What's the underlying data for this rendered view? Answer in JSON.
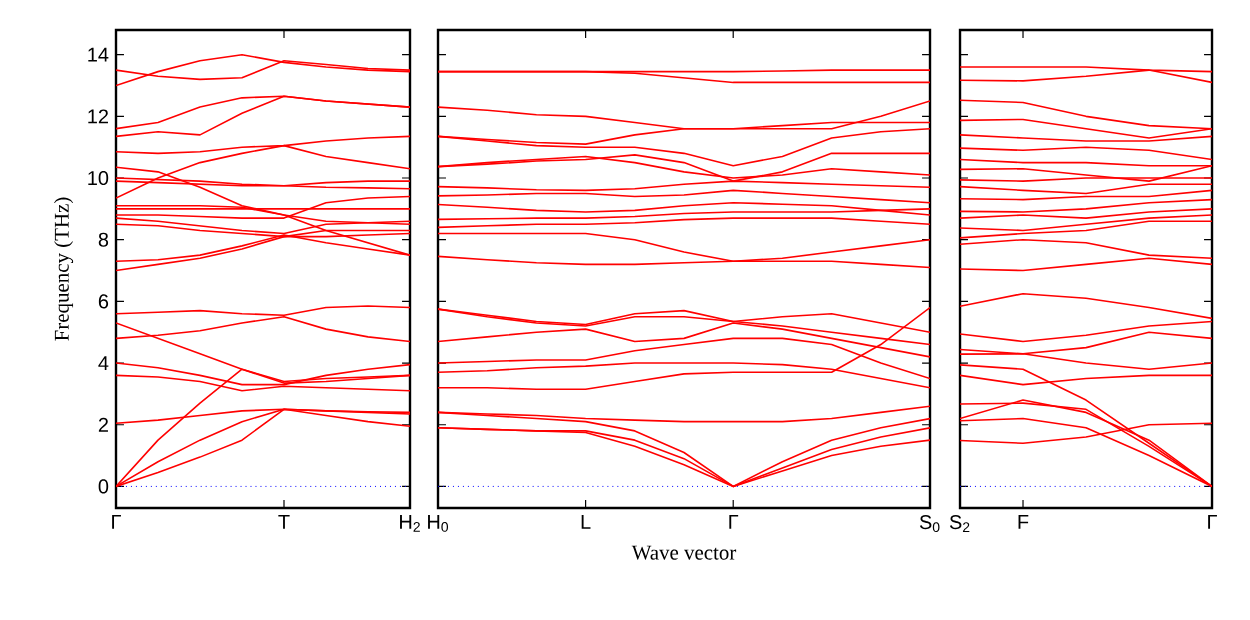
{
  "chart_data": [
    {
      "type": "line",
      "ylabel": "Frequency (THz)",
      "ylim": [
        -0.7,
        14.8
      ],
      "yticks": [
        0,
        2,
        4,
        6,
        8,
        10,
        12,
        14
      ],
      "categories": [
        "Γ",
        null,
        null,
        null,
        "T",
        null,
        null,
        "H$_{2}$"
      ],
      "ref_lines": [
        {
          "axis": "y",
          "value": 0,
          "color": "#0000ff",
          "line_style": "dotted"
        }
      ],
      "series": [
        {
          "color": "#ff0000",
          "values": [
            0,
            0.45,
            0.95,
            1.5,
            2.5,
            2.3,
            2.1,
            1.95
          ]
        },
        {
          "color": "#ff0000",
          "values": [
            0,
            0.8,
            1.5,
            2.1,
            2.5,
            2.45,
            2.4,
            2.35
          ]
        },
        {
          "color": "#ff0000",
          "values": [
            0,
            1.5,
            2.7,
            3.8,
            3.4,
            3.5,
            3.55,
            3.6
          ]
        },
        {
          "color": "#ff0000",
          "values": [
            2.05,
            2.15,
            2.3,
            2.45,
            2.5,
            2.45,
            2.42,
            2.4
          ]
        },
        {
          "color": "#ff0000",
          "values": [
            3.6,
            3.55,
            3.4,
            3.1,
            3.25,
            3.2,
            3.15,
            3.1
          ]
        },
        {
          "color": "#ff0000",
          "values": [
            4.0,
            3.85,
            3.6,
            3.3,
            3.3,
            3.6,
            3.8,
            3.95
          ]
        },
        {
          "color": "#ff0000",
          "values": [
            5.3,
            4.8,
            4.3,
            3.8,
            3.35,
            3.4,
            3.5,
            3.6
          ]
        },
        {
          "color": "#ff0000",
          "values": [
            4.8,
            4.9,
            5.05,
            5.3,
            5.5,
            5.1,
            4.85,
            4.7
          ]
        },
        {
          "color": "#ff0000",
          "values": [
            5.6,
            5.65,
            5.7,
            5.6,
            5.55,
            5.8,
            5.85,
            5.8
          ]
        },
        {
          "color": "#ff0000",
          "values": [
            7.0,
            7.2,
            7.4,
            7.7,
            8.1,
            8.1,
            8.15,
            8.2
          ]
        },
        {
          "color": "#ff0000",
          "values": [
            7.3,
            7.35,
            7.5,
            7.8,
            8.15,
            7.9,
            7.7,
            7.5
          ]
        },
        {
          "color": "#ff0000",
          "values": [
            8.5,
            8.45,
            8.3,
            8.2,
            8.1,
            8.3,
            8.3,
            8.3
          ]
        },
        {
          "color": "#ff0000",
          "values": [
            8.7,
            8.6,
            8.45,
            8.3,
            8.2,
            8.5,
            8.55,
            8.6
          ]
        },
        {
          "color": "#ff0000",
          "values": [
            8.8,
            8.8,
            8.75,
            8.7,
            8.7,
            9.2,
            9.35,
            9.4
          ]
        },
        {
          "color": "#ff0000",
          "values": [
            9.0,
            9.0,
            9.0,
            9.0,
            9.0,
            9.0,
            9.0,
            9.0
          ]
        },
        {
          "color": "#ff0000",
          "values": [
            9.1,
            9.1,
            9.1,
            9.05,
            8.8,
            8.6,
            8.55,
            8.5
          ]
        },
        {
          "color": "#ff0000",
          "values": [
            9.35,
            10.0,
            10.5,
            10.8,
            11.05,
            10.7,
            10.5,
            10.3
          ]
        },
        {
          "color": "#ff0000",
          "values": [
            9.9,
            9.85,
            9.8,
            9.75,
            9.75,
            9.7,
            9.68,
            9.65
          ]
        },
        {
          "color": "#ff0000",
          "values": [
            10.0,
            9.95,
            9.9,
            9.8,
            9.75,
            9.85,
            9.9,
            9.9
          ]
        },
        {
          "color": "#ff0000",
          "values": [
            10.35,
            10.2,
            9.7,
            9.1,
            8.8,
            8.3,
            7.9,
            7.5
          ]
        },
        {
          "color": "#ff0000",
          "values": [
            10.85,
            10.8,
            10.85,
            11.0,
            11.05,
            11.2,
            11.3,
            11.35
          ]
        },
        {
          "color": "#ff0000",
          "values": [
            11.35,
            11.5,
            11.4,
            12.1,
            12.65,
            12.5,
            12.4,
            12.3
          ]
        },
        {
          "color": "#ff0000",
          "values": [
            11.6,
            11.8,
            12.3,
            12.6,
            12.65,
            12.5,
            12.4,
            12.3
          ]
        },
        {
          "color": "#ff0000",
          "values": [
            13.0,
            13.45,
            13.8,
            14.0,
            13.75,
            13.6,
            13.5,
            13.45
          ]
        },
        {
          "color": "#ff0000",
          "values": [
            13.5,
            13.3,
            13.2,
            13.25,
            13.8,
            13.68,
            13.55,
            13.5
          ]
        }
      ]
    },
    {
      "type": "line",
      "xlabel": "Wave vector",
      "tick_labels": "x",
      "ylim": [
        -0.7,
        14.8
      ],
      "yticks": [
        0,
        2,
        4,
        6,
        8,
        10,
        12,
        14
      ],
      "categories": [
        "H$_{0}$",
        null,
        null,
        "L",
        null,
        null,
        "Γ",
        null,
        null,
        null,
        "S$_{0}$"
      ],
      "ref_lines": [
        {
          "axis": "y",
          "value": 0,
          "color": "#0000ff",
          "line_style": "dotted"
        }
      ],
      "series": [
        {
          "color": "#ff0000",
          "values": [
            1.9,
            1.85,
            1.8,
            1.75,
            1.3,
            0.7,
            0,
            0.5,
            1.0,
            1.3,
            1.5
          ]
        },
        {
          "color": "#ff0000",
          "values": [
            1.9,
            1.85,
            1.8,
            1.8,
            1.5,
            0.9,
            0,
            0.6,
            1.2,
            1.6,
            1.9
          ]
        },
        {
          "color": "#ff0000",
          "values": [
            2.4,
            2.3,
            2.2,
            2.1,
            1.8,
            1.1,
            0,
            0.8,
            1.5,
            1.9,
            2.2
          ]
        },
        {
          "color": "#ff0000",
          "values": [
            2.4,
            2.35,
            2.3,
            2.2,
            2.15,
            2.1,
            2.1,
            2.1,
            2.2,
            2.4,
            2.6
          ]
        },
        {
          "color": "#ff0000",
          "values": [
            3.2,
            3.2,
            3.15,
            3.15,
            3.4,
            3.65,
            3.7,
            3.7,
            3.7,
            4.6,
            5.8
          ]
        },
        {
          "color": "#ff0000",
          "values": [
            3.7,
            3.75,
            3.85,
            3.9,
            4.0,
            4.0,
            4.0,
            3.95,
            3.8,
            3.5,
            3.2
          ]
        },
        {
          "color": "#ff0000",
          "values": [
            4.0,
            4.05,
            4.1,
            4.1,
            4.4,
            4.6,
            4.8,
            4.8,
            4.6,
            4.0,
            3.5
          ]
        },
        {
          "color": "#ff0000",
          "values": [
            4.7,
            4.85,
            5.0,
            5.1,
            4.7,
            4.8,
            5.3,
            5.1,
            4.8,
            4.5,
            4.2
          ]
        },
        {
          "color": "#ff0000",
          "values": [
            5.75,
            5.5,
            5.3,
            5.2,
            5.5,
            5.5,
            5.35,
            5.2,
            5.0,
            4.8,
            4.6
          ]
        },
        {
          "color": "#ff0000",
          "values": [
            5.75,
            5.55,
            5.35,
            5.25,
            5.6,
            5.7,
            5.35,
            5.5,
            5.6,
            5.3,
            5.0
          ]
        },
        {
          "color": "#ff0000",
          "values": [
            7.46,
            7.35,
            7.25,
            7.2,
            7.2,
            7.25,
            7.3,
            7.3,
            7.3,
            7.2,
            7.1
          ]
        },
        {
          "color": "#ff0000",
          "values": [
            8.2,
            8.2,
            8.2,
            8.2,
            8.0,
            7.6,
            7.3,
            7.4,
            7.6,
            7.8,
            8.0
          ]
        },
        {
          "color": "#ff0000",
          "values": [
            8.4,
            8.45,
            8.5,
            8.5,
            8.55,
            8.65,
            8.7,
            8.7,
            8.7,
            8.6,
            8.5
          ]
        },
        {
          "color": "#ff0000",
          "values": [
            8.66,
            8.68,
            8.7,
            8.7,
            8.75,
            8.85,
            8.9,
            8.9,
            8.9,
            8.95,
            9.0
          ]
        },
        {
          "color": "#ff0000",
          "values": [
            9.14,
            9.05,
            8.95,
            8.9,
            8.95,
            9.1,
            9.2,
            9.15,
            9.1,
            8.95,
            8.8
          ]
        },
        {
          "color": "#ff0000",
          "values": [
            9.42,
            9.45,
            9.5,
            9.5,
            9.4,
            9.45,
            9.6,
            9.5,
            9.4,
            9.3,
            9.2
          ]
        },
        {
          "color": "#ff0000",
          "values": [
            9.72,
            9.68,
            9.62,
            9.6,
            9.65,
            9.8,
            9.9,
            9.85,
            9.8,
            9.75,
            9.7
          ]
        },
        {
          "color": "#ff0000",
          "values": [
            10.37,
            10.5,
            10.6,
            10.7,
            10.5,
            10.2,
            10.0,
            10.1,
            10.3,
            10.2,
            10.1
          ]
        },
        {
          "color": "#ff0000",
          "values": [
            10.37,
            10.45,
            10.55,
            10.6,
            10.75,
            10.5,
            9.9,
            10.2,
            10.8,
            10.8,
            10.8
          ]
        },
        {
          "color": "#ff0000",
          "values": [
            11.35,
            11.2,
            11.05,
            11.0,
            11.0,
            10.8,
            10.4,
            10.7,
            11.3,
            11.5,
            11.6
          ]
        },
        {
          "color": "#ff0000",
          "values": [
            11.35,
            11.25,
            11.15,
            11.1,
            11.4,
            11.6,
            11.6,
            11.7,
            11.8,
            11.8,
            11.8
          ]
        },
        {
          "color": "#ff0000",
          "values": [
            12.3,
            12.2,
            12.05,
            12.0,
            11.8,
            11.6,
            11.6,
            11.6,
            11.6,
            12.0,
            12.5
          ]
        },
        {
          "color": "#ff0000",
          "values": [
            13.45,
            13.45,
            13.45,
            13.45,
            13.4,
            13.25,
            13.1,
            13.1,
            13.1,
            13.1,
            13.1
          ]
        },
        {
          "color": "#ff0000",
          "values": [
            13.45,
            13.45,
            13.45,
            13.45,
            13.45,
            13.45,
            13.45,
            13.47,
            13.5,
            13.5,
            13.5
          ]
        }
      ]
    },
    {
      "type": "line",
      "tick_labels": "x",
      "ylim": [
        -0.7,
        14.8
      ],
      "yticks": [
        0,
        2,
        4,
        6,
        8,
        10,
        12,
        14
      ],
      "categories": [
        "S$_{2}$",
        "F",
        null,
        null,
        "Γ"
      ],
      "ref_lines": [
        {
          "axis": "y",
          "value": 0,
          "color": "#0000ff",
          "line_style": "dotted"
        }
      ],
      "series": [
        {
          "color": "#ff0000",
          "values": [
            1.49,
            1.4,
            1.6,
            2.0,
            2.05
          ]
        },
        {
          "color": "#ff0000",
          "values": [
            2.13,
            2.2,
            1.9,
            1.0,
            0
          ]
        },
        {
          "color": "#ff0000",
          "values": [
            2.2,
            2.8,
            2.4,
            1.5,
            0
          ]
        },
        {
          "color": "#ff0000",
          "values": [
            2.67,
            2.7,
            2.5,
            1.3,
            0
          ]
        },
        {
          "color": "#ff0000",
          "values": [
            3.6,
            3.3,
            3.5,
            3.6,
            3.6
          ]
        },
        {
          "color": "#ff0000",
          "values": [
            3.94,
            3.8,
            2.8,
            1.4,
            0
          ]
        },
        {
          "color": "#ff0000",
          "values": [
            4.29,
            4.3,
            4.0,
            3.8,
            4.0
          ]
        },
        {
          "color": "#ff0000",
          "values": [
            4.44,
            4.3,
            4.5,
            5.0,
            4.8
          ]
        },
        {
          "color": "#ff0000",
          "values": [
            4.94,
            4.7,
            4.9,
            5.2,
            5.35
          ]
        },
        {
          "color": "#ff0000",
          "values": [
            5.84,
            6.25,
            6.1,
            5.8,
            5.45
          ]
        },
        {
          "color": "#ff0000",
          "values": [
            7.05,
            7.0,
            7.2,
            7.4,
            7.2
          ]
        },
        {
          "color": "#ff0000",
          "values": [
            7.85,
            8.0,
            7.9,
            7.5,
            7.4
          ]
        },
        {
          "color": "#ff0000",
          "values": [
            8.06,
            8.2,
            8.3,
            8.6,
            8.6
          ]
        },
        {
          "color": "#ff0000",
          "values": [
            8.38,
            8.3,
            8.5,
            8.7,
            8.8
          ]
        },
        {
          "color": "#ff0000",
          "values": [
            8.7,
            8.8,
            8.7,
            8.9,
            9.0
          ]
        },
        {
          "color": "#ff0000",
          "values": [
            8.92,
            8.9,
            9.0,
            9.2,
            9.3
          ]
        },
        {
          "color": "#ff0000",
          "values": [
            9.33,
            9.3,
            9.4,
            9.4,
            9.6
          ]
        },
        {
          "color": "#ff0000",
          "values": [
            9.72,
            9.6,
            9.5,
            9.8,
            9.8
          ]
        },
        {
          "color": "#ff0000",
          "values": [
            9.94,
            9.9,
            10.0,
            10.0,
            10.0
          ]
        },
        {
          "color": "#ff0000",
          "values": [
            10.28,
            10.3,
            10.1,
            9.9,
            10.4
          ]
        },
        {
          "color": "#ff0000",
          "values": [
            10.6,
            10.5,
            10.5,
            10.4,
            10.4
          ]
        },
        {
          "color": "#ff0000",
          "values": [
            10.97,
            10.9,
            11.0,
            10.9,
            10.6
          ]
        },
        {
          "color": "#ff0000",
          "values": [
            11.4,
            11.3,
            11.2,
            11.2,
            11.35
          ]
        },
        {
          "color": "#ff0000",
          "values": [
            11.87,
            11.9,
            11.6,
            11.3,
            11.6
          ]
        },
        {
          "color": "#ff0000",
          "values": [
            12.52,
            12.45,
            12.0,
            11.7,
            11.6
          ]
        },
        {
          "color": "#ff0000",
          "values": [
            13.17,
            13.15,
            13.3,
            13.5,
            13.1
          ]
        },
        {
          "color": "#ff0000",
          "values": [
            13.6,
            13.6,
            13.6,
            13.5,
            13.45
          ]
        }
      ]
    }
  ]
}
